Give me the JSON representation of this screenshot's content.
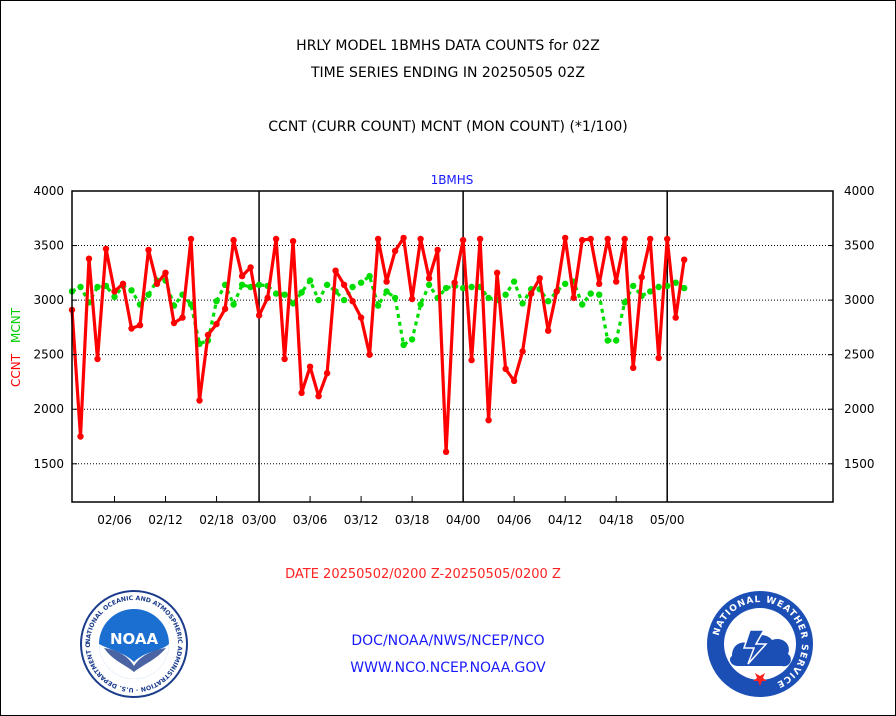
{
  "header": {
    "line1": "HRLY MODEL 1BMHS DATA COUNTS for 02Z",
    "line2": "TIME SERIES ENDING IN 20250505 02Z",
    "line3": "CCNT (CURR COUNT) MCNT (MON COUNT) (*1/100)"
  },
  "chart_data": {
    "type": "line",
    "title": "1BMHS",
    "xlabel": "DATE 20250502/0200 Z-20250505/0200 Z",
    "ylabel_ccnt": "CCNT",
    "ylabel_mcnt": "MCNT",
    "ylim": [
      1150,
      4000
    ],
    "yticks": [
      1500,
      2000,
      2500,
      3000,
      3500,
      4000
    ],
    "xlim": [
      0,
      89.5
    ],
    "x_tick_labels": [
      {
        "x": 5,
        "label": "02/06"
      },
      {
        "x": 11,
        "label": "02/12"
      },
      {
        "x": 17,
        "label": "02/18"
      },
      {
        "x": 22,
        "label": "03/00"
      },
      {
        "x": 28,
        "label": "03/06"
      },
      {
        "x": 34,
        "label": "03/12"
      },
      {
        "x": 40,
        "label": "03/18"
      },
      {
        "x": 46,
        "label": "04/00"
      },
      {
        "x": 52,
        "label": "04/06"
      },
      {
        "x": 58,
        "label": "04/12"
      },
      {
        "x": 64,
        "label": "04/18"
      },
      {
        "x": 70,
        "label": "05/00"
      }
    ],
    "day_boundaries": [
      22,
      46,
      70
    ],
    "grid": true,
    "series": [
      {
        "name": "CCNT",
        "color": "#ff0000",
        "style": "solid",
        "values": [
          2910,
          1750,
          3380,
          2460,
          3470,
          3080,
          3150,
          2740,
          2770,
          3460,
          3150,
          3250,
          2790,
          2840,
          3560,
          2080,
          2680,
          2780,
          2920,
          3550,
          3220,
          3300,
          2860,
          3020,
          3560,
          2460,
          3540,
          2150,
          2390,
          2120,
          2330,
          3270,
          3140,
          2990,
          2840,
          2500,
          3560,
          3170,
          3450,
          3570,
          3010,
          3560,
          3200,
          3460,
          1610,
          3160,
          3550,
          2450,
          3560,
          1900,
          3250,
          2370,
          2260,
          2530,
          3060,
          3200,
          2720,
          3080,
          3570,
          3020,
          3550,
          3560,
          3150,
          3560,
          3170,
          3560,
          2380,
          3210,
          3560,
          2470,
          3560,
          2840,
          3370
        ]
      },
      {
        "name": "MCNT",
        "color": "#00dd00",
        "style": "dotted",
        "values": [
          3080,
          3120,
          2980,
          3120,
          3130,
          3030,
          3130,
          3090,
          2960,
          3050,
          3180,
          3180,
          2950,
          3050,
          2960,
          2600,
          2630,
          2990,
          3140,
          2960,
          3140,
          3120,
          3140,
          3130,
          3060,
          3050,
          2970,
          3070,
          3180,
          3000,
          3140,
          3080,
          3000,
          3120,
          3160,
          3220,
          2950,
          3080,
          3020,
          2590,
          2640,
          2960,
          3140,
          3020,
          3110,
          3130,
          3110,
          3120,
          3120,
          3020,
          3000,
          3050,
          3170,
          2970,
          3100,
          3100,
          2990,
          3080,
          3150,
          3170,
          2960,
          3060,
          3050,
          2630,
          2630,
          2980,
          3130,
          3040,
          3080,
          3120,
          3130,
          3160,
          3110
        ]
      }
    ]
  },
  "footer": {
    "line1": "DOC/NOAA/NWS/NCEP/NCO",
    "line2": "WWW.NCO.NCEP.NOAA.GOV"
  },
  "logos": {
    "noaa_text": "NOAA",
    "noaa_ring": "NATIONAL OCEANIC AND ATMOSPHERIC ADMINISTRATION · U.S. DEPARTMENT OF COMMERCE",
    "nws_ring": "NATIONAL WEATHER SERVICE"
  }
}
